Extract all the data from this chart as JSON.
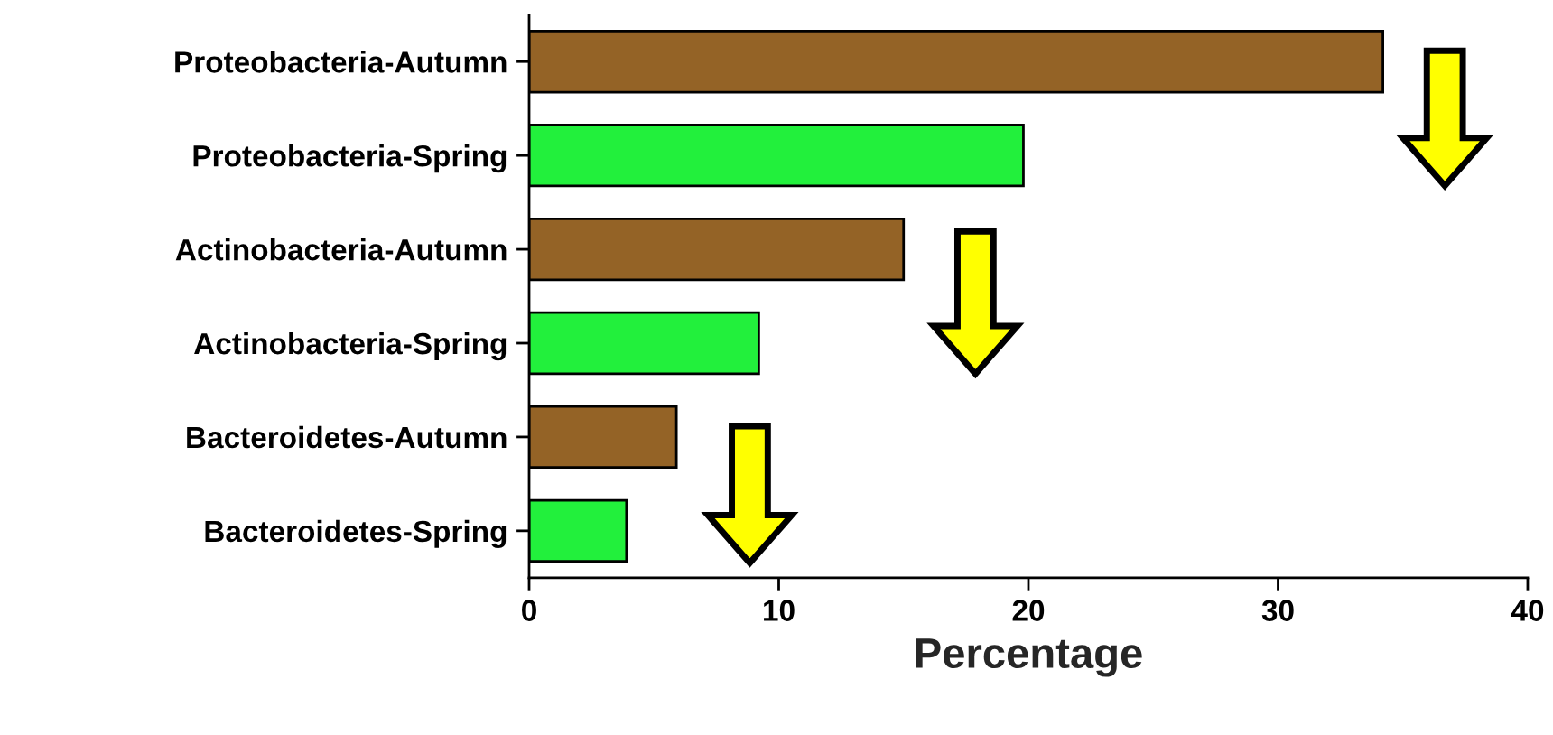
{
  "chart_data": {
    "type": "bar",
    "orientation": "horizontal",
    "xlabel": "Percentage",
    "categories": [
      "Proteobacteria-Autumn",
      "Proteobacteria-Spring",
      "Actinobacteria-Autumn",
      "Actinobacteria-Spring",
      "Bacteroidetes-Autumn",
      "Bacteroidetes-Spring"
    ],
    "values": [
      34.2,
      19.8,
      15.0,
      9.2,
      5.9,
      3.9
    ],
    "colors": [
      "#946326",
      "#22f03c",
      "#946326",
      "#22f03c",
      "#946326",
      "#22f03c"
    ],
    "xlim": [
      0,
      40
    ],
    "xticks": [
      0,
      10,
      20,
      30,
      40
    ],
    "grid": false,
    "legend": false
  }
}
